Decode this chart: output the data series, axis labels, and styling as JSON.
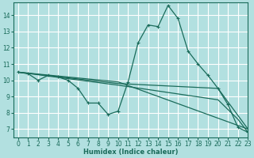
{
  "background_color": "#b2e0e0",
  "grid_color": "#ffffff",
  "line_color": "#1a6b5a",
  "xlabel": "Humidex (Indice chaleur)",
  "xlim": [
    -0.5,
    23
  ],
  "ylim": [
    6.5,
    14.8
  ],
  "yticks": [
    7,
    8,
    9,
    10,
    11,
    12,
    13,
    14
  ],
  "xticks": [
    0,
    1,
    2,
    3,
    4,
    5,
    6,
    7,
    8,
    9,
    10,
    11,
    12,
    13,
    14,
    15,
    16,
    17,
    18,
    19,
    20,
    21,
    22,
    23
  ],
  "series": [
    {
      "x": [
        0,
        1,
        2,
        3,
        4,
        5,
        6,
        7,
        8,
        9,
        10,
        11,
        12,
        13,
        14,
        15,
        16,
        17,
        18,
        19,
        20,
        21,
        22,
        23
      ],
      "y": [
        10.5,
        10.4,
        10.0,
        10.3,
        10.2,
        10.0,
        9.5,
        8.6,
        8.6,
        7.9,
        8.1,
        9.9,
        12.3,
        13.4,
        13.3,
        14.6,
        13.8,
        11.8,
        11.0,
        10.3,
        9.5,
        8.5,
        7.1,
        6.8
      ],
      "marker": true
    },
    {
      "x": [
        0,
        10,
        23
      ],
      "y": [
        10.5,
        9.9,
        7.0
      ],
      "marker": false
    },
    {
      "x": [
        0,
        10,
        20,
        23
      ],
      "y": [
        10.5,
        9.8,
        9.5,
        7.0
      ],
      "marker": false
    },
    {
      "x": [
        0,
        10,
        20,
        22,
        23
      ],
      "y": [
        10.5,
        9.7,
        8.8,
        7.6,
        6.8
      ],
      "marker": false
    }
  ]
}
